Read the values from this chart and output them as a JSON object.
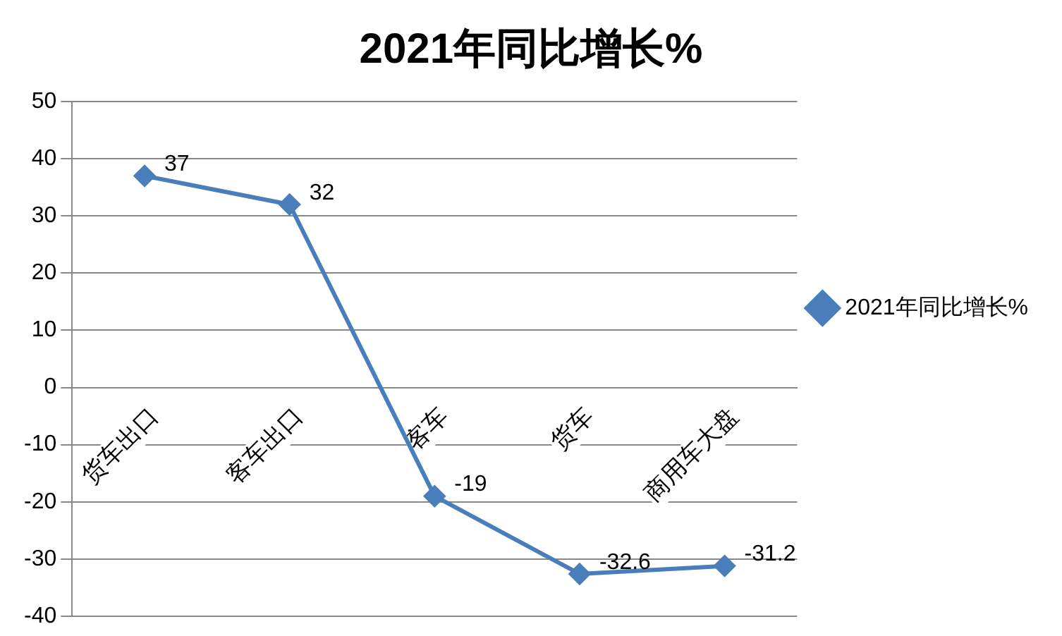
{
  "chart_data": {
    "type": "line",
    "title": "2021年同比增长%",
    "categories": [
      "货车出口",
      "客车出口",
      "客车",
      "货车",
      "商用车大盘"
    ],
    "series": [
      {
        "name": "2021年同比增长%",
        "color": "#4a7ebb",
        "values": [
          37,
          32,
          -19,
          -32.6,
          -31.2
        ]
      }
    ],
    "ylim": [
      -40,
      50
    ],
    "yticks": [
      -40,
      -30,
      -20,
      -10,
      0,
      10,
      20,
      30,
      40,
      50
    ],
    "grid": "y",
    "legend": "right",
    "marker": "diamond",
    "line_style": "solid",
    "data_labels": true
  }
}
